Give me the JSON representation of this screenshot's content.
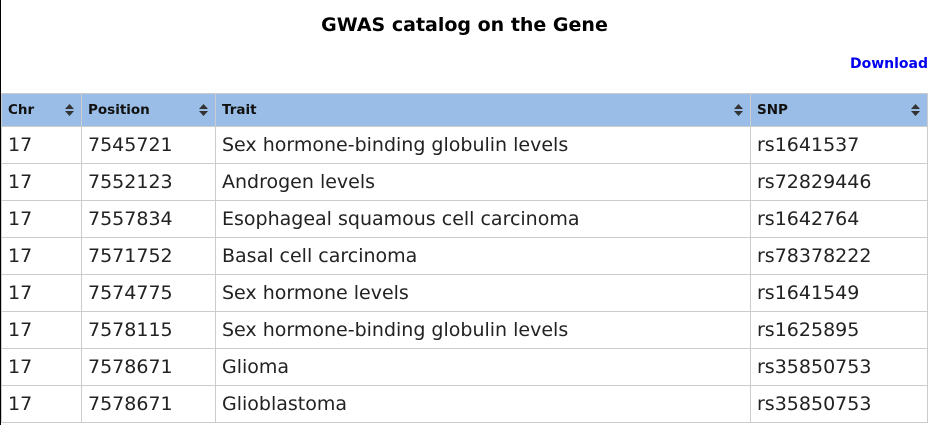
{
  "title": "GWAS catalog on the Gene",
  "download_label": "Download",
  "table": {
    "columns": [
      {
        "label": "Chr",
        "sort_icon": "sort-both-icon"
      },
      {
        "label": "Position",
        "sort_icon": "sort-both-icon"
      },
      {
        "label": "Trait",
        "sort_icon": "sort-both-icon"
      },
      {
        "label": "SNP",
        "sort_icon": "sort-both-icon"
      }
    ],
    "rows": [
      {
        "chr": "17",
        "position": "7545721",
        "trait": "Sex hormone-binding globulin levels",
        "snp": "rs1641537"
      },
      {
        "chr": "17",
        "position": "7552123",
        "trait": "Androgen levels",
        "snp": "rs72829446"
      },
      {
        "chr": "17",
        "position": "7557834",
        "trait": "Esophageal squamous cell carcinoma",
        "snp": "rs1642764"
      },
      {
        "chr": "17",
        "position": "7571752",
        "trait": "Basal cell carcinoma",
        "snp": "rs78378222"
      },
      {
        "chr": "17",
        "position": "7574775",
        "trait": "Sex hormone levels",
        "snp": "rs1641549"
      },
      {
        "chr": "17",
        "position": "7578115",
        "trait": "Sex hormone-binding globulin levels",
        "snp": "rs1625895"
      },
      {
        "chr": "17",
        "position": "7578671",
        "trait": "Glioma",
        "snp": "rs35850753"
      },
      {
        "chr": "17",
        "position": "7578671",
        "trait": "Glioblastoma",
        "snp": "rs35850753"
      }
    ]
  },
  "colors": {
    "header_bg": "#99bde6",
    "link": "#0000ee",
    "border": "#cccccc"
  }
}
